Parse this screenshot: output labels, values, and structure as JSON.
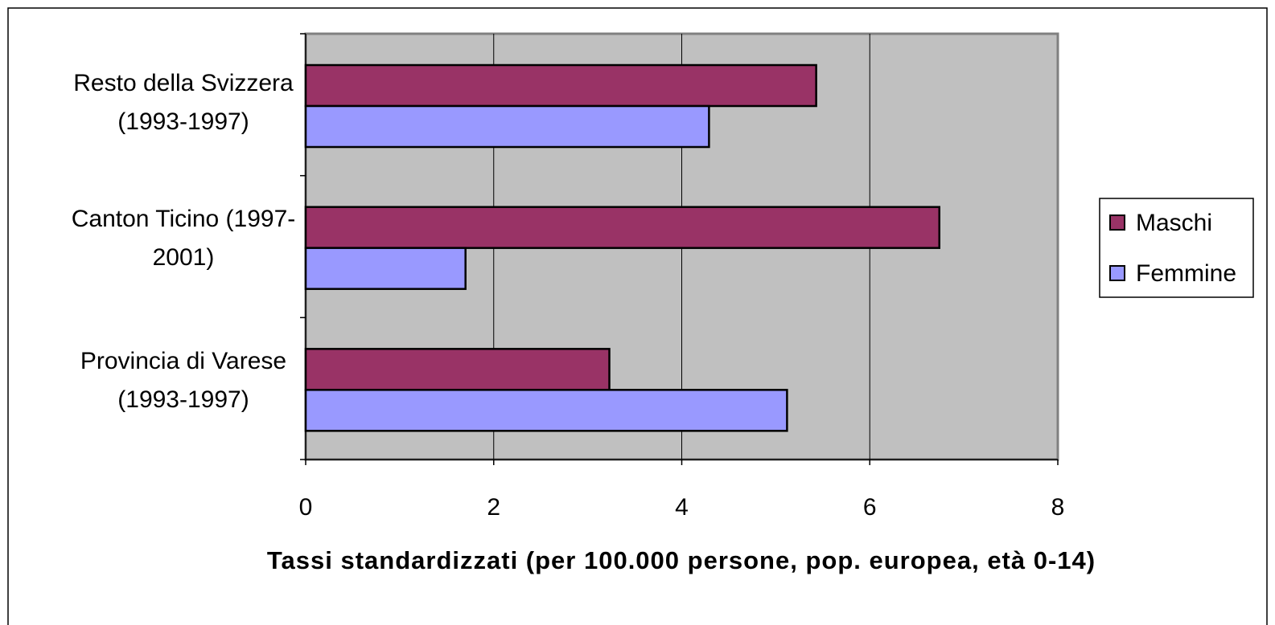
{
  "chart_data": {
    "type": "hbar",
    "categories": [
      "Resto della Svizzera (1993-1997)",
      "Canton Ticino (1997-2001)",
      "Provincia di Varese (1993-1997)"
    ],
    "series": [
      {
        "name": "Maschi",
        "color": "#993366",
        "values": [
          5.43,
          6.74,
          3.23
        ]
      },
      {
        "name": "Femmine",
        "color": "#9999ff",
        "values": [
          4.29,
          1.7,
          5.12
        ]
      }
    ],
    "xlim": [
      0,
      8
    ],
    "xticks": [
      0,
      2,
      4,
      6,
      8
    ],
    "xlabel": "Tassi standardizzati (per 100.000 persone, pop. europea, età 0-14)",
    "grid": true,
    "legend": "right"
  }
}
